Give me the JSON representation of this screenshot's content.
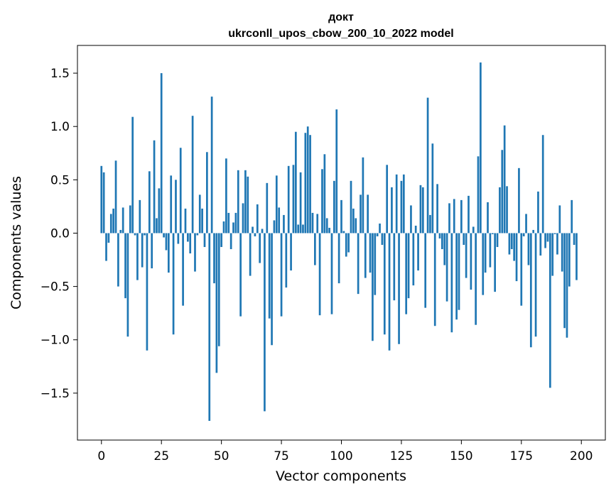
{
  "chart_data": {
    "type": "bar",
    "title": "докт",
    "subtitle": "ukrconll_upos_cbow_200_10_2022 model",
    "xlabel": "Vector components",
    "ylabel": "Components values",
    "xlim": [
      -10,
      210
    ],
    "ylim": [
      -1.94,
      1.76
    ],
    "xticks": [
      0,
      25,
      50,
      75,
      100,
      125,
      150,
      175,
      200
    ],
    "yticks": [
      -1.5,
      -1.0,
      -0.5,
      0.0,
      0.5,
      1.0,
      1.5
    ],
    "ytick_labels": [
      "−1.5",
      "−1.0",
      "−0.5",
      "0.0",
      "0.5",
      "1.0",
      "1.5"
    ],
    "color": "#1f77b4",
    "grid": false,
    "values": [
      0.63,
      0.57,
      -0.26,
      -0.09,
      0.18,
      0.23,
      0.68,
      -0.5,
      0.03,
      0.24,
      -0.61,
      -0.97,
      0.26,
      1.09,
      -0.02,
      -0.44,
      0.31,
      -0.32,
      -0.02,
      -1.1,
      0.58,
      -0.33,
      0.87,
      0.14,
      0.42,
      1.5,
      -0.04,
      -0.16,
      -0.37,
      0.54,
      -0.95,
      0.5,
      -0.1,
      0.8,
      -0.68,
      0.23,
      -0.08,
      -0.19,
      1.1,
      -0.36,
      -0.02,
      0.36,
      0.23,
      -0.13,
      0.76,
      -1.76,
      1.28,
      -0.47,
      -1.31,
      -1.06,
      -0.13,
      0.11,
      0.7,
      0.19,
      -0.15,
      0.1,
      0.19,
      0.59,
      -0.78,
      0.28,
      0.59,
      0.53,
      -0.4,
      0.06,
      -0.03,
      0.27,
      -0.28,
      0.04,
      -1.67,
      0.47,
      -0.8,
      -1.05,
      0.12,
      0.54,
      0.24,
      -0.78,
      0.17,
      -0.51,
      0.63,
      -0.35,
      0.64,
      0.95,
      0.08,
      0.57,
      0.08,
      0.94,
      1.0,
      0.92,
      0.19,
      -0.3,
      0.18,
      -0.77,
      0.6,
      0.74,
      0.14,
      0.05,
      -0.76,
      0.49,
      1.16,
      -0.47,
      0.31,
      0.02,
      -0.22,
      -0.18,
      0.49,
      0.23,
      0.14,
      -0.57,
      0.36,
      0.71,
      -0.42,
      0.36,
      -0.37,
      -1.01,
      -0.58,
      -0.03,
      0.09,
      -0.11,
      -0.95,
      0.64,
      -1.1,
      0.43,
      -0.63,
      0.55,
      -1.04,
      0.49,
      0.55,
      -0.76,
      -0.61,
      0.26,
      -0.49,
      0.07,
      -0.35,
      0.45,
      0.43,
      -0.7,
      1.27,
      0.17,
      0.84,
      -0.87,
      0.46,
      -0.05,
      -0.15,
      -0.3,
      -0.64,
      0.28,
      -0.93,
      0.32,
      -0.81,
      -0.72,
      0.31,
      -0.11,
      -0.42,
      0.35,
      -0.53,
      0.06,
      -0.86,
      0.72,
      1.6,
      -0.58,
      -0.37,
      0.29,
      -0.32,
      -0.01,
      -0.55,
      -0.13,
      0.43,
      0.78,
      1.01,
      0.44,
      -0.2,
      -0.15,
      -0.26,
      -0.45,
      0.61,
      -0.68,
      -0.03,
      0.18,
      -0.3,
      -1.07,
      0.03,
      -0.97,
      0.39,
      -0.21,
      0.92,
      -0.14,
      -0.08,
      -1.45,
      -0.4,
      -0.01,
      -0.2,
      0.26,
      -0.36,
      -0.89,
      -0.98,
      -0.5,
      0.31,
      -0.11,
      -0.44
    ]
  }
}
